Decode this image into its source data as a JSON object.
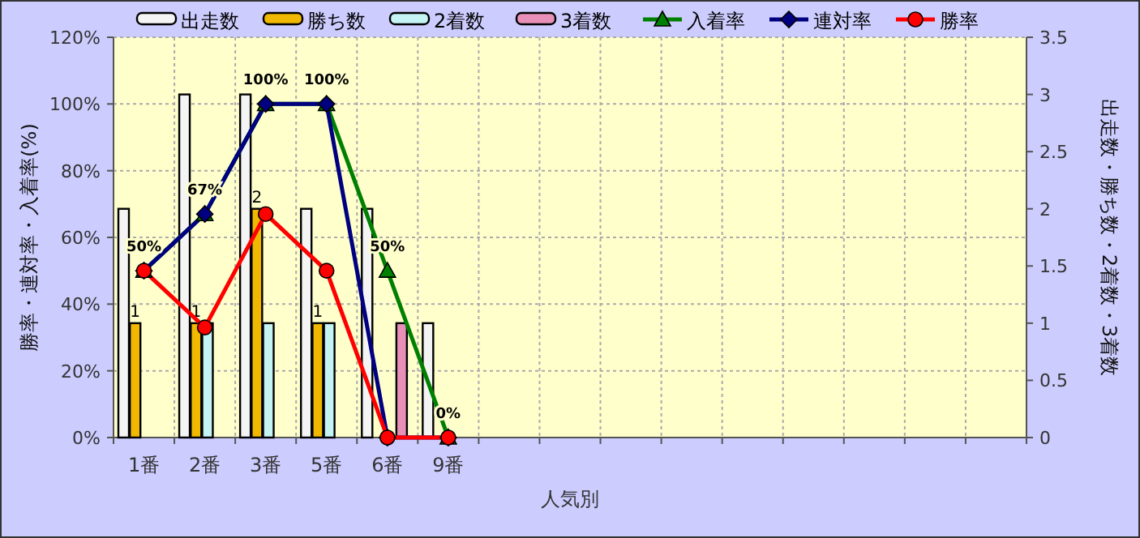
{
  "chart_data": {
    "type": "bar",
    "xlabel": "人気別",
    "ylabel": "勝率・連対率・入着率(%)",
    "y2label": "出走数・勝ち数・2着数・3着数",
    "categories": [
      "1番",
      "2番",
      "3番",
      "5番",
      "6番",
      "9番",
      null,
      null,
      null,
      null,
      null,
      null,
      null,
      null,
      null
    ],
    "series": [
      {
        "name": "出走数",
        "axis": "y2",
        "color": "#f4f4f4",
        "values": [
          2,
          3,
          3,
          2,
          2,
          1,
          null,
          null,
          null,
          null,
          null,
          null,
          null,
          null,
          null
        ]
      },
      {
        "name": "勝ち数",
        "axis": "y2",
        "color": "#f0b800",
        "values": [
          1,
          1,
          2,
          1,
          0,
          0,
          null,
          null,
          null,
          null,
          null,
          null,
          null,
          null,
          null
        ],
        "value_labels": [
          "1",
          "1",
          "2",
          "1",
          null,
          null,
          null,
          null,
          null,
          null,
          null,
          null,
          null,
          null,
          null
        ]
      },
      {
        "name": "2着数",
        "axis": "y2",
        "color": "#c4f4f4",
        "values": [
          0,
          1,
          1,
          1,
          0,
          0,
          null,
          null,
          null,
          null,
          null,
          null,
          null,
          null,
          null
        ]
      },
      {
        "name": "3着数",
        "axis": "y2",
        "color": "#e890b8",
        "values": [
          0,
          0,
          0,
          0,
          1,
          0,
          null,
          null,
          null,
          null,
          null,
          null,
          null,
          null,
          null
        ]
      },
      {
        "name": "入着率",
        "type": "line",
        "marker": "triangle",
        "color": "#008000",
        "values": [
          50,
          67,
          100,
          100,
          50,
          0,
          null,
          null,
          null,
          null,
          null,
          null,
          null,
          null,
          null
        ],
        "value_labels": [
          "50%",
          "67%",
          "100%",
          "100%",
          "50%",
          "0%",
          null,
          null,
          null,
          null,
          null,
          null,
          null,
          null,
          null
        ]
      },
      {
        "name": "連対率",
        "type": "line",
        "marker": "diamond",
        "color": "#000080",
        "values": [
          50,
          67,
          100,
          100,
          0,
          0,
          null,
          null,
          null,
          null,
          null,
          null,
          null,
          null,
          null
        ]
      },
      {
        "name": "勝率",
        "type": "line",
        "marker": "circle",
        "color": "#ff0000",
        "values": [
          50,
          33,
          67,
          50,
          0,
          0,
          null,
          null,
          null,
          null,
          null,
          null,
          null,
          null,
          null
        ]
      }
    ],
    "ylim": [
      0,
      120
    ],
    "yticks": [
      {
        "value": 0,
        "label": "0%"
      },
      {
        "value": 20,
        "label": "20%"
      },
      {
        "value": 40,
        "label": "40%"
      },
      {
        "value": 60,
        "label": "60%"
      },
      {
        "value": 80,
        "label": "80%"
      },
      {
        "value": 100,
        "label": "100%"
      },
      {
        "value": 120,
        "label": "120%"
      }
    ],
    "y2lim": [
      0,
      3.5
    ],
    "y2ticks": [
      0,
      0.5,
      1,
      1.5,
      2,
      2.5,
      3,
      3.5
    ],
    "grid": true,
    "legend": "top"
  }
}
